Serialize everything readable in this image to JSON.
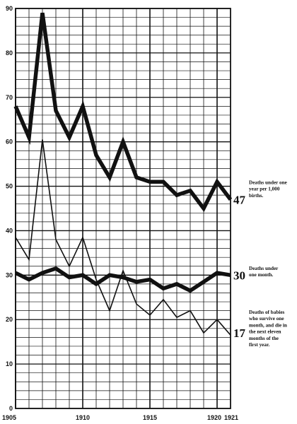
{
  "chart_data": {
    "type": "line",
    "title": "",
    "xlabel": "",
    "ylabel": "",
    "xlim": [
      1905,
      1921
    ],
    "ylim": [
      0,
      90
    ],
    "x_tick_labels": [
      "1905",
      "1910",
      "1915",
      "1920",
      "1921"
    ],
    "y_tick_labels": [
      "0",
      "10",
      "20",
      "30",
      "40",
      "50",
      "60",
      "70",
      "80",
      "90"
    ],
    "grid": true,
    "x": [
      1905,
      1906,
      1907,
      1908,
      1909,
      1910,
      1911,
      1912,
      1913,
      1914,
      1915,
      1916,
      1917,
      1918,
      1919,
      1920,
      1921
    ],
    "series": [
      {
        "name": "Deaths under one year per 1,000 births.",
        "end_label": "47",
        "note_lines": [
          "Deaths under one",
          "year per 1,000",
          "births."
        ],
        "values": [
          68,
          61,
          89,
          67,
          61,
          68,
          57,
          52,
          60,
          52,
          51,
          51,
          48,
          49,
          45,
          51,
          47
        ],
        "color": "#111111",
        "weight": "heavy"
      },
      {
        "name": "Deaths under one month.",
        "end_label": "30",
        "note_lines": [
          "Deaths under",
          "one month."
        ],
        "values": [
          30.5,
          29,
          30.5,
          31.5,
          29.5,
          30,
          28,
          30,
          29.5,
          28.5,
          29,
          27,
          28,
          26.5,
          28.5,
          30.5,
          30
        ],
        "color": "#111111",
        "weight": "heavy"
      },
      {
        "name": "Deaths of babies who survive one month, and die in the next eleven months of the first year.",
        "end_label": "17",
        "note_lines": [
          "Deaths of babies",
          "who survive one",
          "month, and die in",
          "the next eleven",
          "months of the",
          "first year."
        ],
        "values": [
          38.5,
          33.5,
          60.5,
          38,
          32,
          38.5,
          29,
          22,
          31,
          23.5,
          21,
          24.5,
          20.5,
          22,
          17,
          20,
          16.5
        ],
        "color": "#111111",
        "weight": "thin"
      }
    ]
  }
}
